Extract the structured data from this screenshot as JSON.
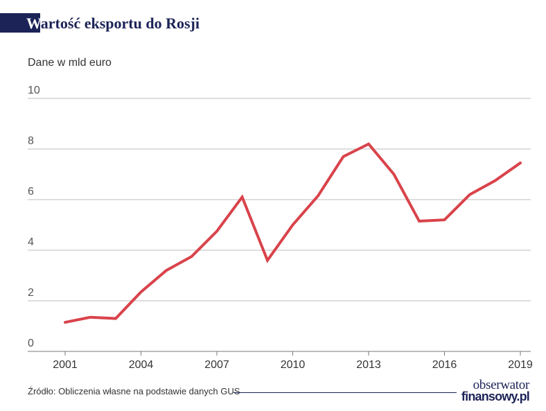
{
  "header": {
    "title_first_letter": "W",
    "title_rest": "artość eksportu do Rosji",
    "subtitle": "Dane w mld euro"
  },
  "footer": {
    "source": "Źródło: Obliczenia własne na podstawie danych GUS",
    "logo_line1": "obserwator",
    "logo_line2": "finansowy.pl"
  },
  "colors": {
    "brand": "#1c2357",
    "line": "#d9434b",
    "grid": "#bdbdbd"
  },
  "chart_data": {
    "type": "line",
    "title": "Wartość eksportu do Rosji",
    "subtitle": "Dane w mld euro",
    "xlabel": "",
    "ylabel": "",
    "x": [
      2001,
      2002,
      2003,
      2004,
      2005,
      2006,
      2007,
      2008,
      2009,
      2010,
      2011,
      2012,
      2013,
      2014,
      2015,
      2016,
      2017,
      2018,
      2019
    ],
    "series": [
      {
        "values": [
          1.15,
          1.35,
          1.3,
          2.35,
          3.2,
          3.75,
          4.75,
          6.1,
          3.6,
          5.0,
          6.15,
          7.7,
          8.2,
          7.0,
          5.15,
          5.2,
          6.2,
          6.75,
          7.45
        ]
      }
    ],
    "ylim": [
      0,
      10
    ],
    "yticks": [
      0,
      2,
      4,
      6,
      8,
      10
    ],
    "xticks": [
      2001,
      2004,
      2007,
      2010,
      2013,
      2016,
      2019
    ],
    "xlim": [
      2001,
      2019
    ],
    "grid": true,
    "legend": "none"
  }
}
